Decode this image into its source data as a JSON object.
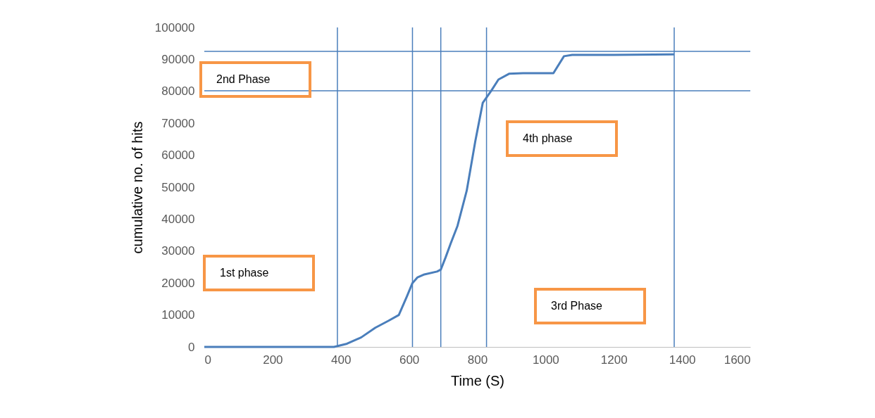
{
  "chart_data": {
    "type": "line",
    "xlabel": "Time (S)",
    "ylabel": "cumulative no. of  hits",
    "x": [
      0,
      100,
      200,
      300,
      380,
      418,
      460,
      501,
      540,
      570,
      594,
      610,
      625,
      645,
      682,
      693,
      707,
      722,
      742,
      769,
      794,
      816,
      841,
      862,
      893,
      934,
      1023,
      1054,
      1078,
      1200,
      1377
    ],
    "series": [
      {
        "color": "#4a7ebb",
        "values": [
          0,
          0,
          0,
          0,
          0,
          1000,
          3000,
          6000,
          8200,
          10000,
          15900,
          20000,
          21800,
          22700,
          23600,
          24200,
          28000,
          32400,
          37900,
          48900,
          64300,
          76400,
          80200,
          83700,
          85500,
          85700,
          85700,
          91000,
          91400,
          91400,
          91600
        ]
      }
    ],
    "xlim": [
      0,
      1600
    ],
    "xticks": [
      0,
      200,
      400,
      600,
      800,
      1000,
      1200,
      1400,
      1600
    ],
    "ylim": [
      0,
      100000
    ],
    "yticks": [
      0,
      10000,
      20000,
      30000,
      40000,
      50000,
      60000,
      70000,
      80000,
      90000,
      100000
    ],
    "grid": false,
    "marker": "none",
    "line_style": "solid",
    "ref_lines": [
      {
        "axis": "x",
        "value": 390,
        "color": "#4a7ebb"
      },
      {
        "axis": "x",
        "value": 610,
        "color": "#4a7ebb"
      },
      {
        "axis": "x",
        "value": 693,
        "color": "#4a7ebb"
      },
      {
        "axis": "x",
        "value": 827,
        "color": "#4a7ebb"
      },
      {
        "axis": "x",
        "value": 1377,
        "color": "#4a7ebb"
      },
      {
        "axis": "y",
        "value": 80200,
        "color": "#4a7ebb"
      },
      {
        "axis": "y",
        "value": 92500,
        "color": "#4a7ebb"
      }
    ],
    "annotations": [
      "2nd Phase",
      "1st  phase",
      "4th phase",
      "3rd Phase"
    ]
  }
}
